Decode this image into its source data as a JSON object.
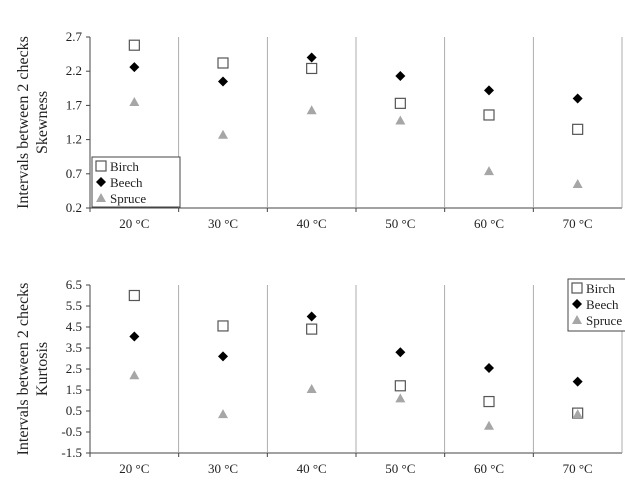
{
  "chart_data": [
    {
      "type": "scatter",
      "ylabel": "Intervals between 2 checks\nSkewness",
      "categories": [
        "20 °C",
        "30 °C",
        "40 °C",
        "50 °C",
        "60 °C",
        "70 °C"
      ],
      "ylim": [
        0.2,
        2.7
      ],
      "yticks": [
        "2.7",
        "2.2",
        "1.7",
        "1.2",
        "0.7",
        "0.2"
      ],
      "legend_position": "bottom-left",
      "grid": "vertical category separators",
      "series": [
        {
          "name": "Birch",
          "marker": "open-square",
          "color": "#555555",
          "values": [
            2.58,
            2.32,
            2.24,
            1.73,
            1.56,
            1.35
          ]
        },
        {
          "name": "Beech",
          "marker": "diamond",
          "color": "#000000",
          "values": [
            2.26,
            2.05,
            2.4,
            2.13,
            1.92,
            1.8
          ]
        },
        {
          "name": "Spruce",
          "marker": "triangle",
          "color": "#a6a6a6",
          "values": [
            1.75,
            1.27,
            1.63,
            1.48,
            0.74,
            0.55
          ]
        }
      ]
    },
    {
      "type": "scatter",
      "ylabel": "Intervals between 2 checks\nKurtosis",
      "categories": [
        "20 °C",
        "30 °C",
        "40 °C",
        "50 °C",
        "60 °C",
        "70 °C"
      ],
      "ylim": [
        -1.5,
        6.5
      ],
      "yticks": [
        "6.5",
        "5.5",
        "4.5",
        "3.5",
        "2.5",
        "1.5",
        "0.5",
        "-0.5",
        "-1.5"
      ],
      "legend_position": "top-right",
      "grid": "vertical category separators",
      "series": [
        {
          "name": "Birch",
          "marker": "open-square",
          "color": "#555555",
          "values": [
            6.0,
            4.55,
            4.4,
            1.7,
            0.95,
            0.4
          ]
        },
        {
          "name": "Beech",
          "marker": "diamond",
          "color": "#000000",
          "values": [
            4.05,
            3.1,
            5.0,
            3.3,
            2.55,
            1.9
          ]
        },
        {
          "name": "Spruce",
          "marker": "triangle",
          "color": "#a6a6a6",
          "values": [
            2.2,
            0.35,
            1.55,
            1.1,
            -0.2,
            0.35
          ]
        }
      ]
    }
  ]
}
